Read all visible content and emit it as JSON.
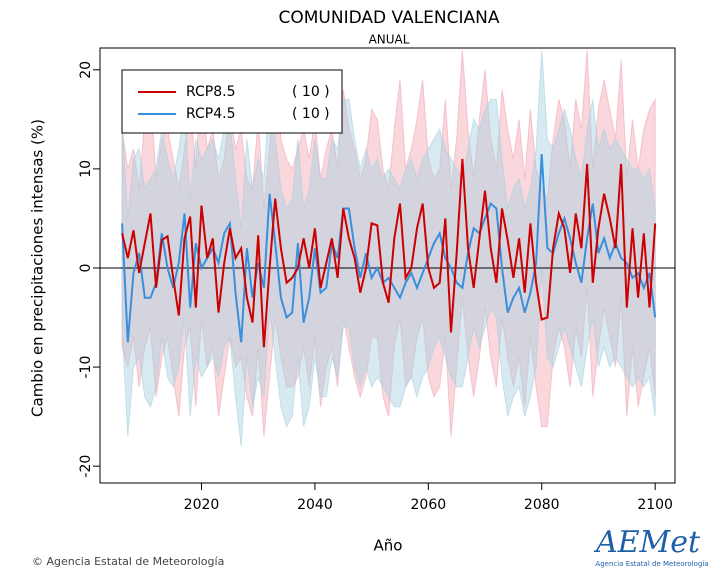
{
  "chart_data": {
    "type": "line",
    "title": "COMUNIDAD VALENCIANA",
    "subtitle": "ANUAL",
    "x_label": "Año",
    "y_label": "Cambio en precipitaciones intensas (%)",
    "x": [
      2006,
      2007,
      2008,
      2009,
      2010,
      2011,
      2012,
      2013,
      2014,
      2015,
      2016,
      2017,
      2018,
      2019,
      2020,
      2021,
      2022,
      2023,
      2024,
      2025,
      2026,
      2027,
      2028,
      2029,
      2030,
      2031,
      2032,
      2033,
      2034,
      2035,
      2036,
      2037,
      2038,
      2039,
      2040,
      2041,
      2042,
      2043,
      2044,
      2045,
      2046,
      2047,
      2048,
      2049,
      2050,
      2051,
      2052,
      2053,
      2054,
      2055,
      2056,
      2057,
      2058,
      2059,
      2060,
      2061,
      2062,
      2063,
      2064,
      2065,
      2066,
      2067,
      2068,
      2069,
      2070,
      2071,
      2072,
      2073,
      2074,
      2075,
      2076,
      2077,
      2078,
      2079,
      2080,
      2081,
      2082,
      2083,
      2084,
      2085,
      2086,
      2087,
      2088,
      2089,
      2090,
      2091,
      2092,
      2093,
      2094,
      2095,
      2096,
      2097,
      2098,
      2099,
      2100
    ],
    "series": [
      {
        "name": "RCP8.5",
        "ensemble_label": "( 10 )",
        "color": "#cc0000",
        "band_color": "#f2a7b4",
        "values": [
          3.5,
          1.0,
          3.8,
          -0.5,
          2.5,
          5.5,
          -2.0,
          2.8,
          3.2,
          -1.0,
          -4.8,
          3.0,
          5.2,
          -4.0,
          6.3,
          1.0,
          3.0,
          -4.5,
          0.5,
          4.0,
          1.0,
          2.0,
          -3.0,
          -5.5,
          3.3,
          -8.0,
          0.0,
          7.0,
          2.0,
          -1.5,
          -1.0,
          0.0,
          3.0,
          0.0,
          4.0,
          -2.0,
          0.5,
          3.0,
          -1.0,
          6.0,
          3.0,
          1.0,
          -2.5,
          0.0,
          4.5,
          4.3,
          -1.5,
          -3.5,
          3.0,
          6.5,
          -1.0,
          0.0,
          4.0,
          6.5,
          0.0,
          -2.0,
          -1.5,
          5.0,
          -6.5,
          1.5,
          11.0,
          2.0,
          -2.0,
          3.0,
          7.8,
          2.0,
          -1.5,
          6.0,
          2.8,
          -1.0,
          3.0,
          -2.5,
          4.5,
          -1.5,
          -5.2,
          -5.0,
          2.0,
          5.5,
          4.0,
          -0.5,
          5.5,
          2.0,
          10.5,
          -1.5,
          4.0,
          7.5,
          5.0,
          2.0,
          10.5,
          -4.0,
          4.0,
          -3.0,
          3.5,
          -4.0,
          4.5
        ],
        "upper": [
          14,
          10,
          12,
          8,
          15,
          18,
          9,
          13,
          14,
          11,
          8,
          12,
          16,
          10,
          19,
          12,
          14,
          9,
          11,
          16,
          12,
          14,
          9,
          8,
          15,
          6,
          12,
          20,
          13,
          11,
          10,
          12,
          14,
          11,
          15,
          9,
          12,
          14,
          10,
          18,
          14,
          12,
          9,
          11,
          16,
          15,
          10,
          8,
          14,
          19,
          10,
          12,
          15,
          19,
          11,
          9,
          10,
          17,
          8,
          13,
          22,
          14,
          9,
          15,
          20,
          13,
          10,
          18,
          14,
          11,
          15,
          9,
          16,
          10,
          8,
          7,
          13,
          17,
          15,
          10,
          17,
          14,
          22,
          10,
          16,
          19,
          16,
          13,
          21,
          9,
          15,
          10,
          14,
          16,
          17
        ],
        "lower": [
          -8,
          -10,
          -7,
          -12,
          -8,
          -6,
          -13,
          -9,
          -7,
          -11,
          -15,
          -8,
          -6,
          -14,
          -5,
          -10,
          -8,
          -15,
          -11,
          -7,
          -10,
          -9,
          -13,
          -15,
          -8,
          -17,
          -11,
          -5,
          -9,
          -12,
          -12,
          -11,
          -8,
          -12,
          -7,
          -14,
          -10,
          -8,
          -12,
          -5,
          -8,
          -11,
          -13,
          -11,
          -7,
          -7,
          -13,
          -15,
          -8,
          -5,
          -12,
          -11,
          -7,
          -5,
          -11,
          -13,
          -12,
          -7,
          -17,
          -10,
          -3,
          -9,
          -13,
          -9,
          -4,
          -9,
          -12,
          -5,
          -9,
          -12,
          -9,
          -14,
          -7,
          -12,
          -16,
          -16,
          -9,
          -6,
          -8,
          -12,
          -6,
          -9,
          -2,
          -13,
          -8,
          -4,
          -7,
          -10,
          -3,
          -15,
          -8,
          -14,
          -11,
          -8,
          -13
        ]
      },
      {
        "name": "RCP4.5",
        "ensemble_label": "( 10 )",
        "color": "#3a8fdd",
        "band_color": "#a6d0e0",
        "values": [
          4.5,
          -7.5,
          -0.5,
          1.5,
          -3.0,
          -3.0,
          -1.5,
          3.5,
          0.0,
          -2.0,
          0.5,
          5.5,
          -4.0,
          2.5,
          0.0,
          1.0,
          2.0,
          0.5,
          3.5,
          4.5,
          -2.5,
          -7.5,
          2.0,
          -3.0,
          0.5,
          -2.0,
          7.5,
          2.5,
          -3.0,
          -5.0,
          -4.5,
          2.5,
          -5.5,
          -3.0,
          2.0,
          -2.5,
          -2.0,
          2.5,
          1.0,
          6.0,
          6.0,
          2.0,
          -1.0,
          1.5,
          -1.0,
          0.0,
          -1.5,
          -1.0,
          -2.0,
          -3.0,
          -1.5,
          -0.5,
          -2.0,
          -0.5,
          1.0,
          2.5,
          3.5,
          1.0,
          0.0,
          -1.5,
          -2.0,
          1.5,
          4.0,
          3.5,
          5.0,
          6.5,
          6.0,
          0.0,
          -4.5,
          -3.0,
          -2.0,
          -4.5,
          -2.5,
          0.5,
          11.5,
          2.0,
          1.5,
          3.5,
          5.0,
          3.0,
          0.5,
          -1.5,
          3.0,
          6.5,
          1.5,
          3.0,
          1.0,
          2.5,
          1.0,
          0.5,
          -1.0,
          -0.5,
          -2.0,
          -0.5,
          -5.0
        ],
        "upper": [
          15,
          5,
          11,
          12,
          8,
          9,
          10,
          14,
          11,
          9,
          12,
          16,
          7,
          13,
          11,
          12,
          13,
          11,
          14,
          15,
          9,
          4,
          13,
          8,
          11,
          9,
          18,
          13,
          8,
          6,
          7,
          13,
          6,
          8,
          13,
          9,
          9,
          13,
          12,
          17,
          17,
          13,
          10,
          12,
          10,
          11,
          9,
          10,
          9,
          8,
          10,
          11,
          9,
          11,
          12,
          13,
          14,
          12,
          11,
          10,
          9,
          12,
          15,
          14,
          16,
          17,
          17,
          11,
          6,
          8,
          9,
          6,
          8,
          12,
          22,
          13,
          12,
          14,
          16,
          14,
          11,
          9,
          14,
          17,
          12,
          14,
          12,
          13,
          12,
          11,
          10,
          10,
          9,
          10,
          6
        ],
        "lower": [
          -6,
          -17,
          -10,
          -9,
          -13,
          -14,
          -12,
          -7,
          -11,
          -12,
          -10,
          -5,
          -15,
          -9,
          -11,
          -10,
          -9,
          -11,
          -8,
          -7,
          -13,
          -18,
          -9,
          -14,
          -11,
          -13,
          -4,
          -9,
          -14,
          -16,
          -15,
          -9,
          -16,
          -14,
          -9,
          -13,
          -13,
          -9,
          -11,
          -6,
          -6,
          -10,
          -12,
          -10,
          -12,
          -11,
          -12,
          -13,
          -14,
          -14,
          -12,
          -11,
          -13,
          -11,
          -10,
          -8,
          -7,
          -9,
          -11,
          -12,
          -12,
          -9,
          -6,
          -8,
          -6,
          -4,
          -5,
          -11,
          -15,
          -13,
          -12,
          -15,
          -13,
          -10,
          0,
          -9,
          -10,
          -8,
          -6,
          -8,
          -10,
          -12,
          -8,
          -5,
          -10,
          -8,
          -10,
          -9,
          -10,
          -11,
          -12,
          -11,
          -12,
          -11,
          -15
        ]
      }
    ],
    "xlim": [
      2002.1,
      2103.5
    ],
    "ylim": [
      -21.7,
      22.2
    ],
    "xticks": [
      2020,
      2040,
      2060,
      2080,
      2100
    ],
    "yticks": [
      -20,
      -10,
      0,
      10,
      20
    ],
    "reference_line": 0,
    "legend": "top-left"
  },
  "credit": "© Agencia Estatal de Meteorología",
  "logo": {
    "name": "AEMet",
    "caption": "Agencia Estatal de Meteorología"
  }
}
